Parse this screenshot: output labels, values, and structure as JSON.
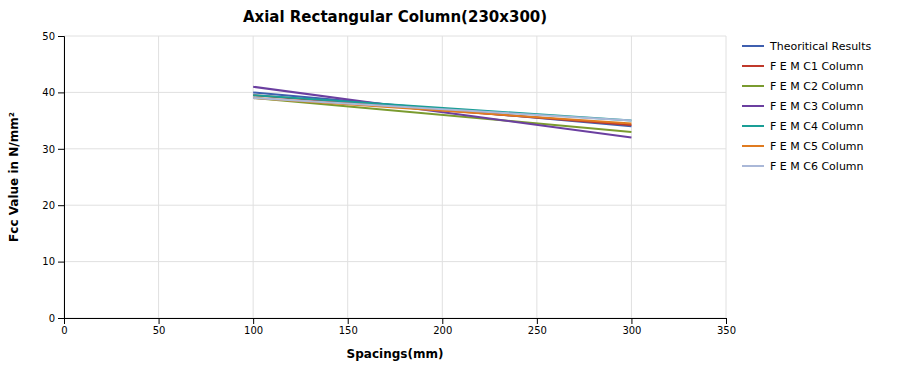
{
  "chart_data": {
    "type": "line",
    "title": "Axial Rectangular Column(230x300)",
    "xlabel": "Spacings(mm)",
    "ylabel": "Fcc Value in N/mm²",
    "x": [
      100,
      300
    ],
    "xlim": [
      0,
      350
    ],
    "ylim": [
      0,
      50
    ],
    "xticks": [
      0,
      50,
      100,
      150,
      200,
      250,
      300,
      350
    ],
    "yticks": [
      0,
      10,
      20,
      30,
      40,
      50
    ],
    "grid": true,
    "legend": "upper right",
    "series": [
      {
        "name": "Theoritical Results",
        "color": "#3f5faf",
        "values": [
          40.0,
          34.0
        ]
      },
      {
        "name": "F E M C1 Column",
        "color": "#c0392b",
        "values": [
          39.5,
          34.2
        ]
      },
      {
        "name": "F E M C2 Column",
        "color": "#7a9b2f",
        "values": [
          39.0,
          33.0
        ]
      },
      {
        "name": "F E M C3 Column",
        "color": "#6b3fa0",
        "values": [
          41.0,
          32.0
        ]
      },
      {
        "name": "F E M C4 Column",
        "color": "#1a9e96",
        "values": [
          39.5,
          35.0
        ]
      },
      {
        "name": "F E M C5 Column",
        "color": "#e07b20",
        "values": [
          39.0,
          34.5
        ]
      },
      {
        "name": "F E M C6 Column",
        "color": "#aab8d8",
        "values": [
          39.0,
          35.0
        ]
      }
    ]
  }
}
